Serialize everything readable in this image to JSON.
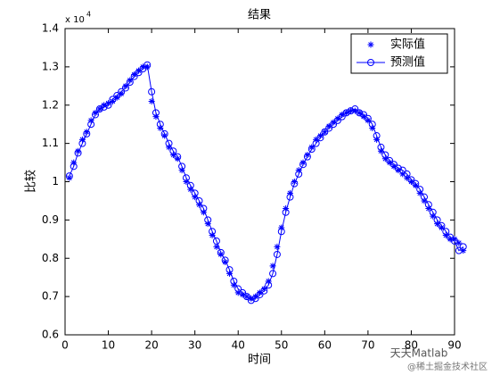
{
  "chart_data": {
    "type": "line",
    "title": "结果",
    "xlabel": "时间",
    "ylabel": "比较",
    "y_scale_label": "x 10",
    "y_scale_exponent": "4",
    "x": [
      1,
      2,
      3,
      4,
      5,
      6,
      7,
      8,
      9,
      10,
      11,
      12,
      13,
      14,
      15,
      16,
      17,
      18,
      19,
      20,
      21,
      22,
      23,
      24,
      25,
      26,
      27,
      28,
      29,
      30,
      31,
      32,
      33,
      34,
      35,
      36,
      37,
      38,
      39,
      40,
      41,
      42,
      43,
      44,
      45,
      46,
      47,
      48,
      49,
      50,
      51,
      52,
      53,
      54,
      55,
      56,
      57,
      58,
      59,
      60,
      61,
      62,
      63,
      64,
      65,
      66,
      67,
      68,
      69,
      70,
      71,
      72,
      73,
      74,
      75,
      76,
      77,
      78,
      79,
      80,
      81,
      82,
      83,
      84,
      85,
      86,
      87,
      88,
      89,
      90,
      91,
      92
    ],
    "series": [
      {
        "name": "实际值",
        "color": "#0000ff",
        "marker": "star",
        "line": false,
        "values": [
          1.01,
          1.05,
          1.08,
          1.11,
          1.13,
          1.16,
          1.18,
          1.19,
          1.2,
          1.205,
          1.21,
          1.22,
          1.23,
          1.25,
          1.265,
          1.28,
          1.29,
          1.3,
          1.3,
          1.21,
          1.17,
          1.14,
          1.12,
          1.09,
          1.07,
          1.06,
          1.03,
          1.0,
          0.98,
          0.96,
          0.94,
          0.92,
          0.89,
          0.86,
          0.83,
          0.81,
          0.79,
          0.76,
          0.73,
          0.71,
          0.705,
          0.7,
          0.695,
          0.7,
          0.71,
          0.72,
          0.74,
          0.78,
          0.83,
          0.88,
          0.93,
          0.97,
          1.0,
          1.03,
          1.05,
          1.07,
          1.09,
          1.11,
          1.12,
          1.13,
          1.145,
          1.155,
          1.165,
          1.175,
          1.18,
          1.185,
          1.185,
          1.18,
          1.17,
          1.16,
          1.14,
          1.11,
          1.08,
          1.06,
          1.05,
          1.04,
          1.03,
          1.02,
          1.01,
          1.0,
          0.99,
          0.97,
          0.95,
          0.93,
          0.91,
          0.89,
          0.88,
          0.86,
          0.85,
          0.85,
          0.84,
          0.82
        ]
      },
      {
        "name": "预测值",
        "color": "#0000ff",
        "marker": "circle",
        "line": true,
        "values": [
          1.015,
          1.04,
          1.075,
          1.1,
          1.125,
          1.15,
          1.175,
          1.19,
          1.195,
          1.2,
          1.215,
          1.225,
          1.235,
          1.245,
          1.26,
          1.275,
          1.285,
          1.295,
          1.305,
          1.235,
          1.18,
          1.15,
          1.125,
          1.1,
          1.08,
          1.065,
          1.04,
          1.01,
          0.99,
          0.97,
          0.95,
          0.93,
          0.9,
          0.87,
          0.845,
          0.815,
          0.795,
          0.77,
          0.74,
          0.72,
          0.71,
          0.7,
          0.69,
          0.695,
          0.705,
          0.715,
          0.73,
          0.76,
          0.81,
          0.87,
          0.92,
          0.96,
          0.995,
          1.02,
          1.045,
          1.065,
          1.085,
          1.1,
          1.115,
          1.13,
          1.14,
          1.15,
          1.16,
          1.17,
          1.18,
          1.185,
          1.19,
          1.18,
          1.175,
          1.165,
          1.15,
          1.12,
          1.09,
          1.07,
          1.055,
          1.045,
          1.035,
          1.03,
          1.02,
          1.005,
          0.995,
          0.98,
          0.96,
          0.94,
          0.92,
          0.9,
          0.885,
          0.87,
          0.855,
          0.845,
          0.82,
          0.83
        ]
      }
    ],
    "xlim": [
      0,
      90
    ],
    "xticks": [
      0,
      10,
      20,
      30,
      40,
      50,
      60,
      70,
      80,
      90
    ],
    "ylim": [
      0.6,
      1.4
    ],
    "yticks": [
      0.6,
      0.7,
      0.8,
      0.9,
      1,
      1.1,
      1.2,
      1.3,
      1.4
    ],
    "legend": "northeast",
    "watermark": [
      "天天Matlab",
      "@稀土掘金技术社区"
    ]
  }
}
